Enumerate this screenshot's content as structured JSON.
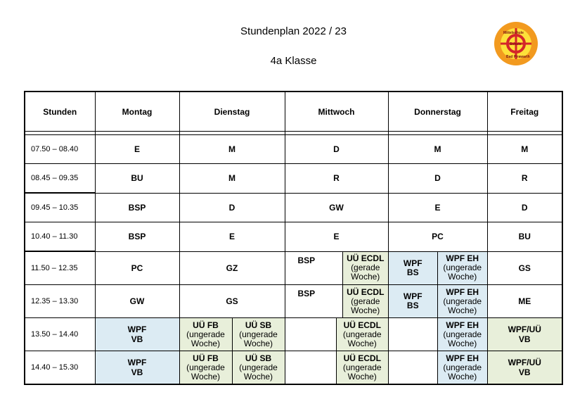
{
  "header": {
    "title": "Stundenplan 2022 / 23",
    "subtitle": "4a Klasse"
  },
  "logo": {
    "icon": "school-seal-icon",
    "text_top": "Mittelschule",
    "text_mid": "Schule",
    "text_bottom": "Bad Pirawarth"
  },
  "columns": [
    "Stunden",
    "Montag",
    "Dienstag",
    "Mittwoch",
    "Donnerstag",
    "Freitag"
  ],
  "times": [
    "07.50 – 08.40",
    "08.45 – 09.35",
    "09.45 – 10.35",
    "10.40 – 11.30",
    "11.50 – 12.35",
    "12.35 – 13.30",
    "13.50 – 14.40",
    "14.40 – 15.30"
  ],
  "rows": {
    "r1": {
      "mo": "E",
      "di": "M",
      "mi": "D",
      "do": "M",
      "fr": "M"
    },
    "r2": {
      "mo": "BU",
      "di": "M",
      "mi": "R",
      "do": "D",
      "fr": "R"
    },
    "r3": {
      "mo": "BSP",
      "di": "D",
      "mi": "GW",
      "do": "E",
      "fr": "D"
    },
    "r4": {
      "mo": "BSP",
      "di": "E",
      "mi": "E",
      "do": "PC",
      "fr": "BU"
    },
    "r5": {
      "mo": "PC",
      "di": "GZ",
      "mi_left": "BSP",
      "mi_right_title": "UÜ ECDL",
      "mi_right_l1": "(gerade",
      "mi_right_l2": "Woche)",
      "do_left_l1": "WPF",
      "do_left_l2": "BS",
      "do_right_title": "WPF EH",
      "do_right_l1": "(ungerade",
      "do_right_l2": "Woche)",
      "fr": "GS"
    },
    "r6": {
      "mo": "GW",
      "di": "GS",
      "mi_left": "BSP",
      "mi_right_title": "UÜ ECDL",
      "mi_right_l1": "(gerade",
      "mi_right_l2": "Woche)",
      "do_left_l1": "WPF",
      "do_left_l2": "BS",
      "do_right_title": "WPF EH",
      "do_right_l1": "(ungerade",
      "do_right_l2": "Woche)",
      "fr": "ME"
    },
    "r7": {
      "mo_l1": "WPF",
      "mo_l2": "VB",
      "di_left_title": "UÜ FB",
      "di_left_l1": "(ungerade",
      "di_left_l2": "Woche)",
      "di_right_title": "UÜ SB",
      "di_right_l1": "(ungerade",
      "di_right_l2": "Woche)",
      "mi_right_title": "UÜ ECDL",
      "mi_right_l1": "(ungerade",
      "mi_right_l2": "Woche)",
      "do_right_title": "WPF EH",
      "do_right_l1": "(ungerade",
      "do_right_l2": "Woche)",
      "fr_l1": "WPF/UÜ",
      "fr_l2": "VB"
    },
    "r8": {
      "mo_l1": "WPF",
      "mo_l2": "VB",
      "di_left_title": "UÜ FB",
      "di_left_l1": "(ungerade",
      "di_left_l2": "Woche)",
      "di_right_title": "UÜ SB",
      "di_right_l1": "(ungerade",
      "di_right_l2": "Woche)",
      "mi_right_title": "UÜ ECDL",
      "mi_right_l1": "(ungerade",
      "mi_right_l2": "Woche)",
      "do_right_title": "WPF EH",
      "do_right_l1": "(ungerade",
      "do_right_l2": "Woche)",
      "fr_l1": "WPF/UÜ",
      "fr_l2": "VB"
    }
  },
  "colors": {
    "blue_cell": "#dcebf3",
    "green_cell": "#e8efda",
    "logo_orange": "#f29a1f",
    "logo_red": "#d4252a",
    "logo_yellow": "#fde03a"
  }
}
